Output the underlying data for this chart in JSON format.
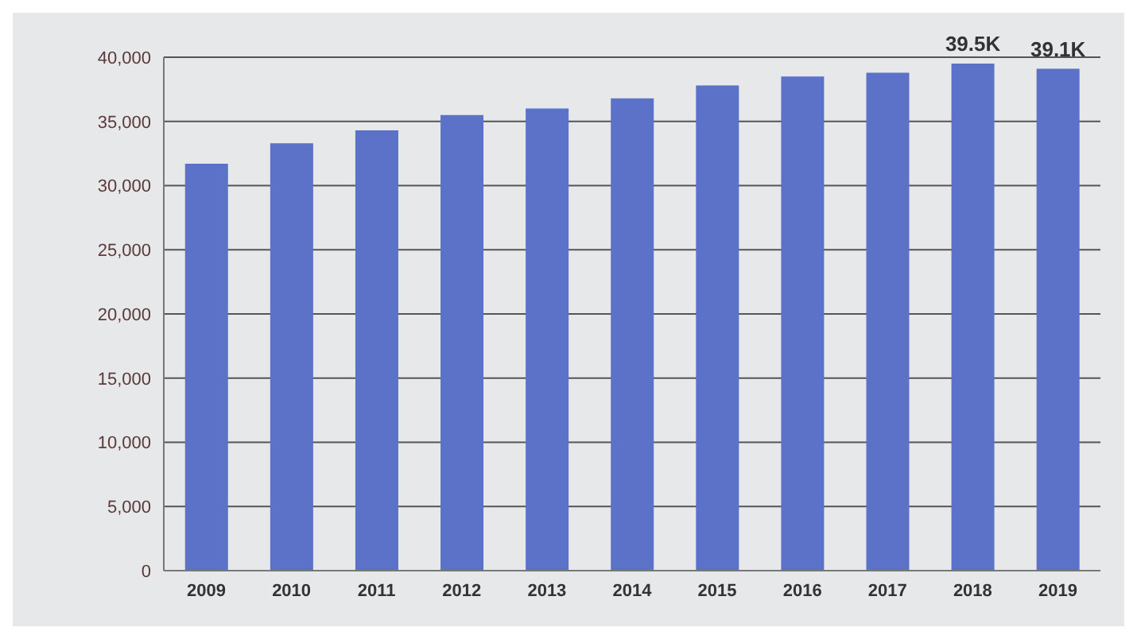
{
  "chart_data": {
    "type": "bar",
    "categories": [
      "2009",
      "2010",
      "2011",
      "2012",
      "2013",
      "2014",
      "2015",
      "2016",
      "2017",
      "2018",
      "2019"
    ],
    "values": [
      31700,
      33300,
      34300,
      35500,
      36000,
      36800,
      37800,
      38500,
      38800,
      39500,
      39100
    ],
    "value_labels": [
      null,
      null,
      null,
      null,
      null,
      null,
      null,
      null,
      null,
      "39.5K",
      "39.1K"
    ],
    "color": "#5b72c8",
    "ylim": [
      0,
      40000
    ],
    "yticks": [
      {
        "value": 0,
        "label": "0"
      },
      {
        "value": 5000,
        "label": "5,000"
      },
      {
        "value": 10000,
        "label": "10,000"
      },
      {
        "value": 15000,
        "label": "15,000"
      },
      {
        "value": 20000,
        "label": "20,000"
      },
      {
        "value": 25000,
        "label": "25,000"
      },
      {
        "value": 30000,
        "label": "30,000"
      },
      {
        "value": 35000,
        "label": "35,000"
      },
      {
        "value": 40000,
        "label": "40,000"
      }
    ],
    "grid": "y"
  }
}
